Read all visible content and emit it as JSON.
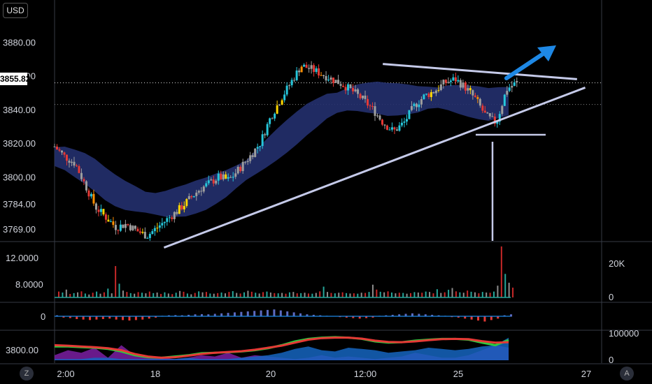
{
  "currency_label": "USD",
  "corner_left_label": "Z",
  "corner_right_label": "A",
  "colors": {
    "background": "#000000",
    "up": "#26c6da",
    "down": "#e53935",
    "neutral": "#9e9e9e",
    "yellow": "#ffd600",
    "orange": "#ff8f00",
    "cloud": "#24306e",
    "trendline": "#c5cae9",
    "arrow": "#1e88e5",
    "vol_up": "#26a69a",
    "vol_down": "#c62828",
    "green_line": "#2ecc40",
    "red_line": "#e53935",
    "purple_fill": "#7b1fa2",
    "blue_fill": "#1565c0"
  },
  "chart_data": [
    {
      "type": "candlestick",
      "price_axis": {
        "ticks": [
          "3880.00",
          "3860.00",
          "3840.00",
          "3820.00",
          "3800.00",
          "3784.00",
          "3769.00"
        ],
        "top_partial_label": "3",
        "ylim": [
          3762,
          3905
        ]
      },
      "current_price": "3855.82",
      "reference_line_price": 3843,
      "x_axis": {
        "ticks": [
          "2:00",
          "18",
          "20",
          "12:00",
          "25",
          "27"
        ]
      },
      "close_path": [
        3818,
        3812,
        3808,
        3795,
        3782,
        3776,
        3770,
        3772,
        3768,
        3765,
        3770,
        3775,
        3780,
        3786,
        3792,
        3796,
        3800,
        3798,
        3805,
        3812,
        3820,
        3835,
        3846,
        3856,
        3866,
        3864,
        3861,
        3858,
        3855,
        3851,
        3846,
        3840,
        3832,
        3827,
        3832,
        3842,
        3848,
        3851,
        3856,
        3858,
        3853,
        3846,
        3836,
        3832,
        3852,
        3856
      ],
      "cloud": {
        "center": [
          3812,
          3811,
          3808,
          3805,
          3801,
          3796,
          3792,
          3789,
          3787,
          3785,
          3784,
          3784,
          3785,
          3786,
          3788,
          3790,
          3793,
          3796,
          3800,
          3804,
          3809,
          3814,
          3819,
          3824,
          3829,
          3834,
          3838,
          3842,
          3844,
          3846,
          3847,
          3847,
          3847,
          3846,
          3846,
          3846,
          3846,
          3847,
          3847,
          3847,
          3846,
          3845,
          3844,
          3843,
          3844,
          3845
        ],
        "half_width": 7
      },
      "triangle": {
        "upper_line": [
          [
            0.6,
            3867
          ],
          [
            0.955,
            3858
          ]
        ],
        "lower_line": [
          [
            0.2,
            3758
          ],
          [
            0.97,
            3853
          ]
        ],
        "target_level": 3825
      }
    },
    {
      "type": "bar",
      "name": "volume",
      "y_axis_left": [
        "12.0000",
        "8.0000"
      ],
      "y_axis_right": [
        "20K",
        "0"
      ],
      "ylim": [
        0,
        26000
      ],
      "values": [
        3000,
        2500,
        4000,
        1800,
        2200,
        2600,
        3100,
        2000,
        1500,
        2400,
        3000,
        1900,
        2600,
        4500,
        2100,
        16000,
        7000,
        3500,
        2800,
        2200,
        1900,
        2700,
        2400,
        2100,
        3000,
        2200,
        2500,
        1800,
        2600,
        2000,
        1700,
        2400,
        3300,
        2900,
        2000,
        1600,
        2300,
        3100,
        2600,
        2800,
        2000,
        1900,
        2200,
        2500,
        2100,
        2800,
        3200,
        2300,
        2000,
        2600,
        3400,
        2900,
        2400,
        2000,
        2700,
        3000,
        2500,
        2200,
        2100,
        2300,
        1900,
        2600,
        2800,
        2100,
        2200,
        2400,
        2000,
        1900,
        2300,
        3100,
        5500,
        2800,
        2300,
        2100,
        2400,
        2600,
        2200,
        2000,
        2100,
        1900,
        2400,
        2300,
        2800,
        6500,
        4000,
        2900,
        2600,
        3100,
        2500,
        2100,
        2400,
        2300,
        1900,
        2200,
        2700,
        2500,
        2400,
        3000,
        2800,
        2100,
        4200,
        2300,
        2600,
        3900,
        4800,
        3100,
        2600,
        2400,
        3500,
        2900,
        2600,
        2100,
        2800,
        2500,
        2400,
        3000,
        6000,
        26000,
        12000,
        7500,
        5000
      ],
      "colors_up_down": "alternating"
    },
    {
      "type": "histogram",
      "name": "oscillator",
      "y_axis_left": [
        "0"
      ],
      "ylim": [
        -1,
        1
      ],
      "values": [
        0.1,
        -0.1,
        -0.15,
        -0.25,
        -0.3,
        -0.35,
        -0.3,
        -0.25,
        -0.2,
        -0.3,
        -0.35,
        -0.4,
        -0.35,
        -0.3,
        -0.2,
        -0.1,
        0.05,
        0.1,
        0.12,
        0.1,
        0.15,
        0.2,
        0.22,
        0.2,
        0.25,
        0.3,
        0.35,
        0.4,
        0.45,
        0.5,
        0.55,
        0.6,
        0.65,
        0.7,
        0.6,
        0.5,
        0.4,
        0.3,
        0.2,
        0.15,
        0.1,
        0.05,
        0.0,
        -0.05,
        -0.1,
        -0.15,
        -0.2,
        -0.15,
        -0.1,
        0.05,
        0.1,
        0.15,
        0.2,
        0.25,
        0.3,
        0.25,
        0.2,
        0.15,
        0.1,
        0.05,
        -0.05,
        -0.1,
        -0.2,
        -0.3,
        -0.4,
        -0.5,
        -0.35,
        -0.2,
        0.1,
        0.2
      ]
    },
    {
      "type": "line",
      "name": "lower indicator",
      "y_axis_left": [
        "3800.00"
      ],
      "y_axis_right": [
        "100000",
        "0"
      ],
      "series": [
        {
          "color_key": "green_line",
          "values": [
            0.55,
            0.55,
            0.52,
            0.5,
            0.45,
            0.35,
            0.2,
            0.12,
            0.1,
            0.15,
            0.2,
            0.28,
            0.3,
            0.32,
            0.35,
            0.4,
            0.48,
            0.6,
            0.75,
            0.85,
            0.9,
            0.92,
            0.9,
            0.85,
            0.75,
            0.7,
            0.72,
            0.78,
            0.82,
            0.85,
            0.85,
            0.82,
            0.7,
            0.6,
            0.8
          ]
        },
        {
          "color_key": "red_line",
          "values": [
            0.6,
            0.58,
            0.55,
            0.52,
            0.48,
            0.4,
            0.25,
            0.15,
            0.1,
            0.12,
            0.18,
            0.25,
            0.3,
            0.33,
            0.36,
            0.42,
            0.5,
            0.58,
            0.7,
            0.82,
            0.88,
            0.9,
            0.9,
            0.86,
            0.78,
            0.73,
            0.72,
            0.75,
            0.8,
            0.84,
            0.85,
            0.84,
            0.76,
            0.7,
            0.72
          ]
        }
      ],
      "fill_purple": [
        0.2,
        0.4,
        0.3,
        0.5,
        0.1,
        0.6,
        0.2,
        0.15,
        0.1,
        0.05,
        0.1,
        0.2,
        0.15,
        0.3,
        0.1,
        0.2,
        0.15,
        0.1,
        0.05,
        0.1,
        0.2,
        0.1,
        0.15,
        0.1,
        0.05,
        0.1,
        0.15,
        0.3,
        0.2,
        0.1,
        0.1,
        0.2,
        0.4,
        0.6,
        0.5
      ],
      "fill_blue": [
        0.05,
        0.05,
        0.05,
        0.1,
        0.1,
        0.05,
        0.05,
        0.05,
        0.05,
        0.05,
        0.1,
        0.05,
        0.05,
        0.05,
        0.1,
        0.15,
        0.2,
        0.3,
        0.45,
        0.55,
        0.4,
        0.35,
        0.5,
        0.45,
        0.4,
        0.3,
        0.35,
        0.4,
        0.5,
        0.45,
        0.4,
        0.45,
        0.55,
        0.6,
        0.9
      ]
    }
  ]
}
